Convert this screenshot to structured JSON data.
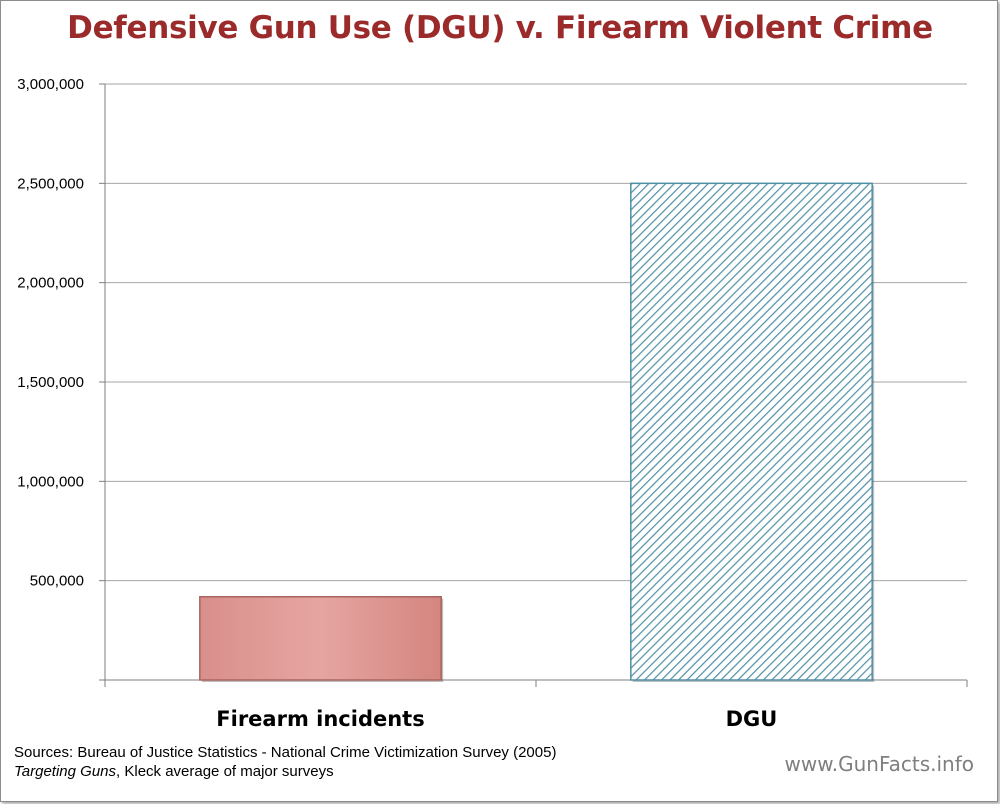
{
  "chart_data": {
    "type": "bar",
    "title": "Defensive Gun Use (DGU) v. Firearm Violent Crime",
    "categories": [
      "Firearm incidents",
      "DGU"
    ],
    "values": [
      419000,
      2500000
    ],
    "ylim": [
      0,
      3000000
    ],
    "yticks": [
      "",
      "500,000",
      "1,000,000",
      "1,500,000",
      "2,000,000",
      "2,500,000",
      "3,000,000"
    ],
    "grid": true,
    "legend": "none",
    "bar_styles": [
      {
        "fill": "#e3a09c",
        "stroke": "#a86561",
        "pattern": "solid"
      },
      {
        "fill": "#ffffff",
        "stroke": "#4f8fa6",
        "pattern": "diagonal-hatch"
      }
    ]
  },
  "sources": {
    "line1": "Sources: Bureau of Justice Statistics - National Crime Victimization Survey (2005)",
    "line2_italic": "Targeting Guns",
    "line2_rest": ", Kleck average of major surveys"
  },
  "website": "www.GunFacts.info"
}
